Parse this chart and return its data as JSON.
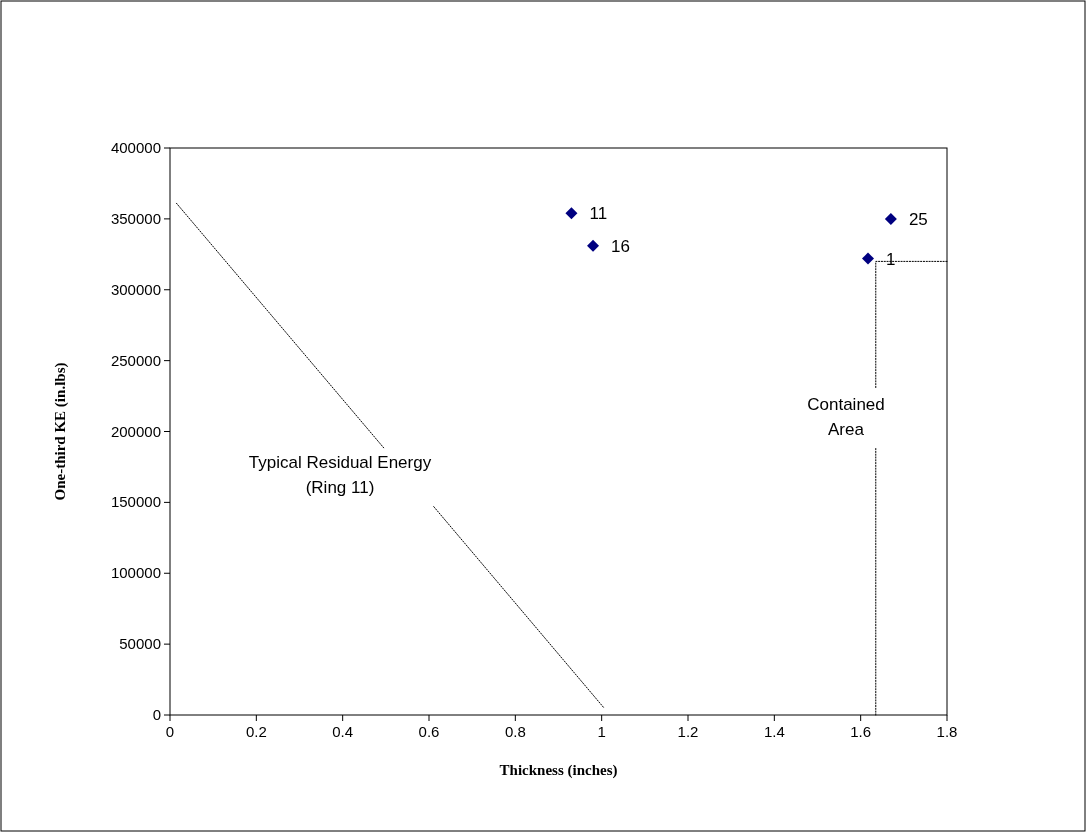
{
  "chart_data": {
    "type": "scatter",
    "xlabel": "Thickness (inches)",
    "ylabel": "One-third KE (in.lbs)",
    "xlim": [
      0,
      1.8
    ],
    "xticks": [
      0,
      {
        "value": 0.2,
        "label": "0.2"
      },
      {
        "value": 0.4,
        "label": "0.4"
      },
      {
        "value": 0.6,
        "label": "0.6"
      },
      {
        "value": 0.8,
        "label": "0.8"
      },
      1,
      {
        "value": 1.2,
        "label": "1.2"
      },
      {
        "value": 1.4,
        "label": "1.4"
      },
      {
        "value": 1.6,
        "label": "1.6"
      },
      {
        "value": 1.8,
        "label": "1.8"
      }
    ],
    "ylim": [
      0,
      400000
    ],
    "yticks": [
      0,
      50000,
      100000,
      150000,
      200000,
      250000,
      300000,
      350000,
      400000
    ],
    "grid": false,
    "marker": "diamond",
    "series": [
      {
        "type": "scatter",
        "color": "#000080",
        "x": [
          0.93,
          0.98,
          1.617,
          1.67
        ],
        "values": [
          354000,
          331000,
          322000,
          350000
        ]
      },
      {
        "type": "line",
        "color": "#000000",
        "line_style": "dotted",
        "marker": "none",
        "x": [
          0.015,
          0.495
        ],
        "values": [
          361000,
          188500
        ]
      },
      {
        "type": "line",
        "color": "#000000",
        "line_style": "dotted",
        "marker": "none",
        "x": [
          0.611,
          1.004
        ],
        "values": [
          147000,
          5500
        ]
      },
      {
        "type": "line",
        "color": "#000000",
        "line_style": "dotted",
        "marker": "none",
        "x": [
          1.8,
          1.635,
          1.635
        ],
        "values": [
          320000,
          320000,
          231000
        ]
      },
      {
        "type": "line",
        "color": "#000000",
        "line_style": "dotted",
        "marker": "none",
        "x": [
          1.635,
          1.635
        ],
        "values": [
          188000,
          0
        ]
      }
    ],
    "annotations": [
      {
        "text": "11",
        "x": 0.93,
        "y": 354000
      },
      {
        "text": "16",
        "x": 0.98,
        "y": 331000
      },
      {
        "text": "1",
        "x": 1.617,
        "y": 322000
      },
      {
        "text": "25",
        "x": 1.67,
        "y": 350000
      },
      "Typical Residual Energy\n(Ring 11)",
      "Contained\nArea"
    ]
  }
}
